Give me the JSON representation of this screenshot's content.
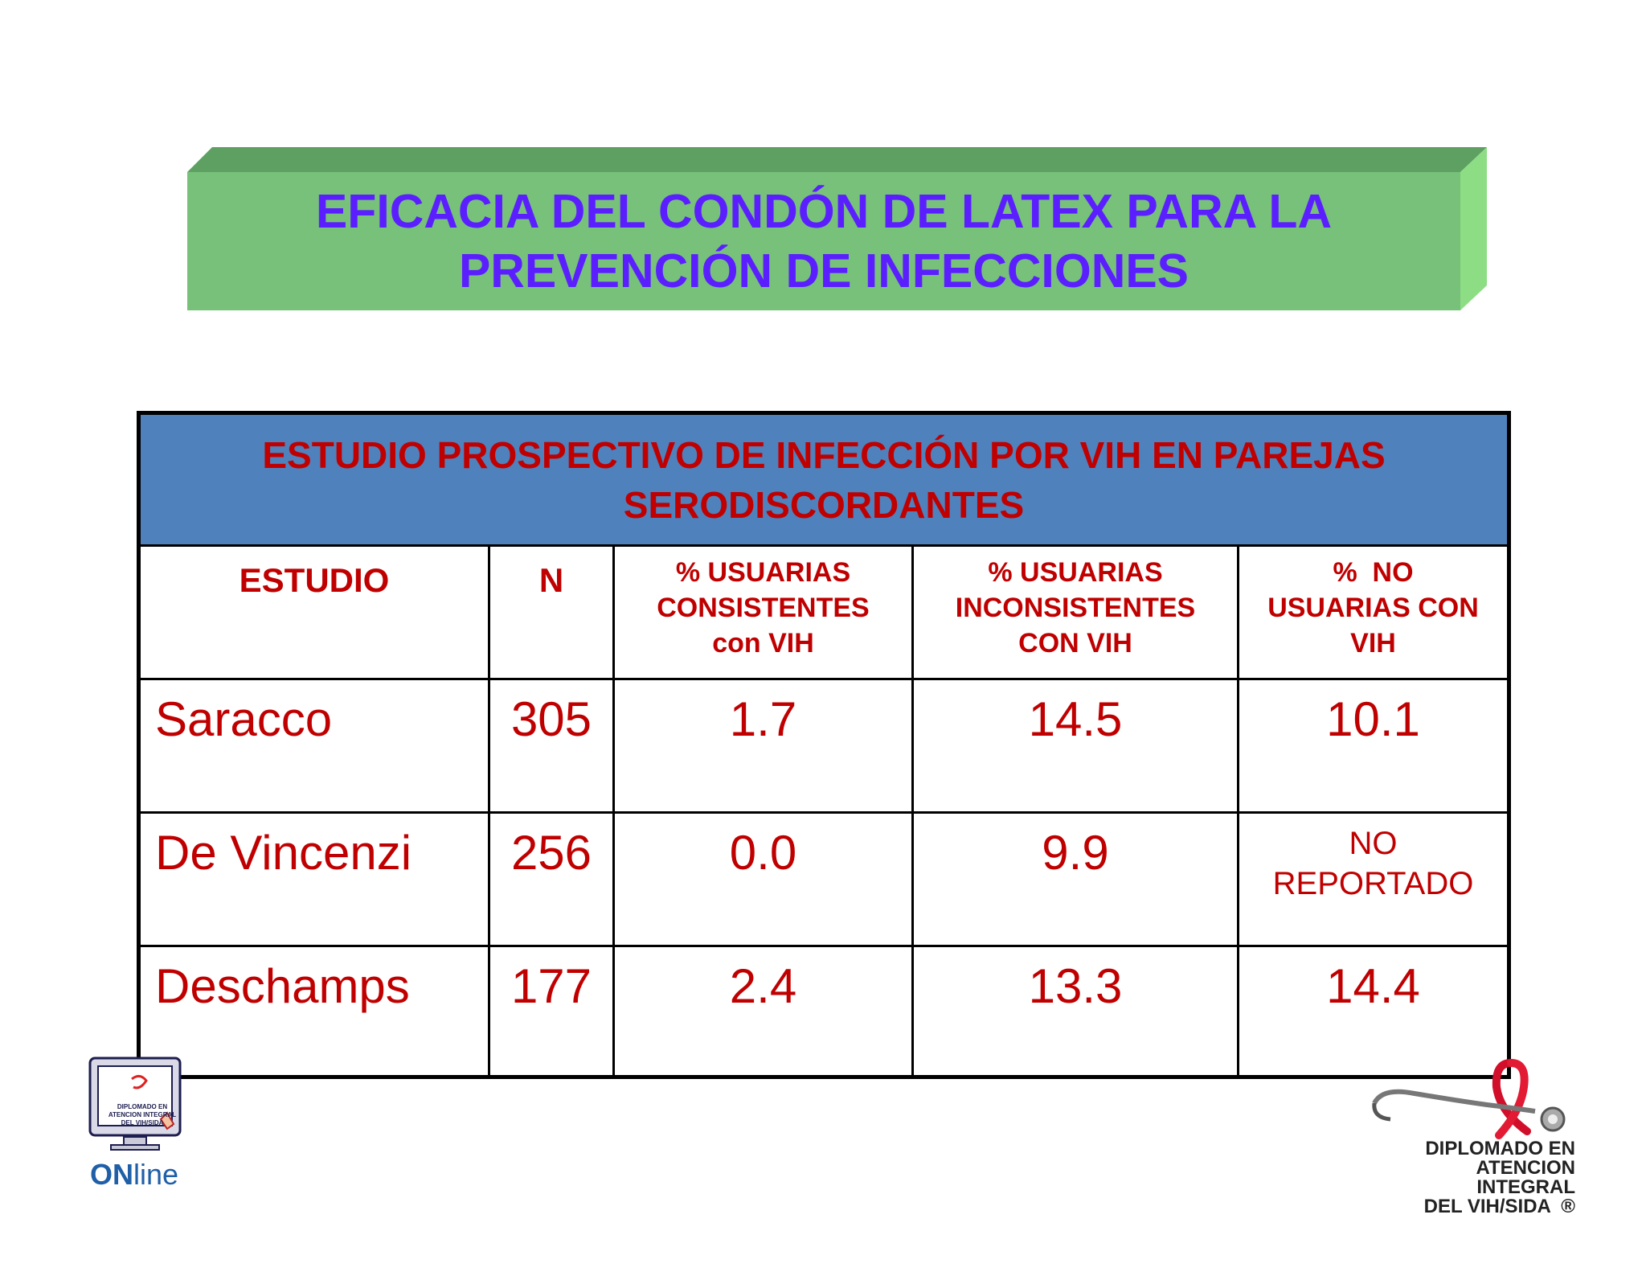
{
  "title": {
    "line1": "EFICACIA DEL CONDÓN DE LATEX PARA LA",
    "line2": "PREVENCIÓN DE INFECCIONES"
  },
  "table": {
    "caption_line1": "ESTUDIO PROSPECTIVO DE INFECCIÓN POR VIH EN PAREJAS",
    "caption_line2": "SERODISCORDANTES",
    "columns": [
      {
        "l1": "ESTUDIO",
        "l2": "",
        "l3": ""
      },
      {
        "l1": "N",
        "l2": "",
        "l3": ""
      },
      {
        "l1": "% USUARIAS",
        "l2": "CONSISTENTES",
        "l3": "con VIH"
      },
      {
        "l1": "% USUARIAS",
        "l2": "INCONSISTENTES",
        "l3": "CON VIH"
      },
      {
        "l1": "%  NO",
        "l2": "USUARIAS CON",
        "l3": "VIH"
      }
    ],
    "rows": [
      {
        "estudio": "Saracco",
        "n": "305",
        "consistentes": "1.7",
        "inconsistentes": "14.5",
        "no_usuarias": "10.1",
        "no_usuarias_2": ""
      },
      {
        "estudio": "De Vincenzi",
        "n": "256",
        "consistentes": "0.0",
        "inconsistentes": "9.9",
        "no_usuarias": "NO",
        "no_usuarias_2": "REPORTADO"
      },
      {
        "estudio": "Deschamps",
        "n": "177",
        "consistentes": "2.4",
        "inconsistentes": "13.3",
        "no_usuarias": "14.4",
        "no_usuarias_2": ""
      }
    ]
  },
  "logos": {
    "left_monitor_line1": "DIPLOMADO EN",
    "left_monitor_line2": "ATENCION INTEGRAL",
    "left_monitor_line3": "DEL VIH/SIDA",
    "left_on": "ON",
    "left_line": "line",
    "right_line1": "DIPLOMADO EN",
    "right_line2": "ATENCION INTEGRAL",
    "right_line3": "DEL VIH/SIDA  ®"
  },
  "colors": {
    "title_text": "#5b1fff",
    "title_box": "#77c17a",
    "table_header_bg": "#4f81bd",
    "table_text": "#c00000"
  }
}
